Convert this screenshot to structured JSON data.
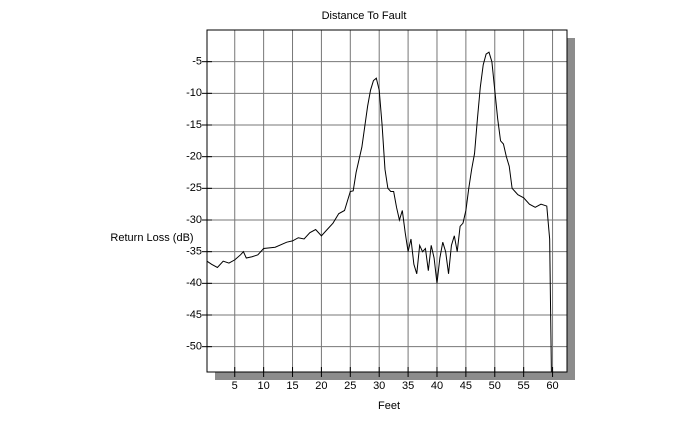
{
  "chart_data": {
    "type": "line",
    "title": "Distance To Fault",
    "x_label": "Feet",
    "y_label": "Return Loss (dB)",
    "x": [
      0.2,
      1,
      2,
      3,
      4,
      5,
      6,
      6.5,
      7,
      8,
      9,
      10,
      12,
      14,
      15,
      16,
      17,
      18,
      19,
      20,
      21,
      22,
      23,
      24,
      24.5,
      25,
      25.5,
      26,
      27,
      28,
      28.5,
      29,
      29.5,
      30,
      30.5,
      31,
      31.5,
      32,
      32.5,
      33,
      33.5,
      34,
      34.5,
      35,
      35.5,
      36,
      36.5,
      37,
      37.5,
      38,
      38.5,
      39,
      39.5,
      40,
      40.5,
      41,
      41.5,
      42,
      42.5,
      43,
      43.5,
      44,
      44.5,
      45,
      45.5,
      46,
      46.5,
      47,
      47.5,
      48,
      48.5,
      49,
      49.5,
      50,
      50.5,
      51,
      51.5,
      52,
      52.5,
      53,
      53.5,
      54,
      55,
      56,
      57,
      58,
      59,
      59.5,
      59.8
    ],
    "values": [
      -36.5,
      -37,
      -37.5,
      -36.5,
      -36.8,
      -36.3,
      -35.5,
      -35,
      -36,
      -35.8,
      -35.5,
      -34.5,
      -34.3,
      -33.5,
      -33.3,
      -32.8,
      -33,
      -32,
      -31.5,
      -32.5,
      -31.5,
      -30.5,
      -29,
      -28.5,
      -27,
      -25.5,
      -25.4,
      -22.5,
      -18.5,
      -12,
      -9.5,
      -8,
      -7.6,
      -9.5,
      -15,
      -22,
      -25,
      -25.5,
      -25.5,
      -28,
      -30,
      -28.5,
      -32,
      -35,
      -33,
      -37,
      -38.5,
      -34,
      -35,
      -34.5,
      -38,
      -34,
      -36,
      -40,
      -36,
      -33.5,
      -35,
      -38.5,
      -34,
      -32.5,
      -35,
      -31,
      -30.5,
      -28.5,
      -25,
      -22,
      -19.5,
      -14,
      -9,
      -5.5,
      -3.8,
      -3.5,
      -5,
      -9.5,
      -14,
      -17.5,
      -18,
      -20,
      -21.5,
      -25,
      -25.5,
      -26,
      -26.5,
      -27.5,
      -28,
      -27.5,
      -27.8,
      -33,
      -54
    ],
    "color": "#000000",
    "xlim": [
      0.2,
      62.5
    ],
    "xticks": [
      5,
      10,
      15,
      20,
      25,
      30,
      35,
      40,
      45,
      50,
      55,
      60
    ],
    "ylim": [
      -54,
      0
    ],
    "yticks": [
      -5,
      -10,
      -15,
      -20,
      -25,
      -30,
      -35,
      -40,
      -45,
      -50
    ],
    "grid": true
  }
}
